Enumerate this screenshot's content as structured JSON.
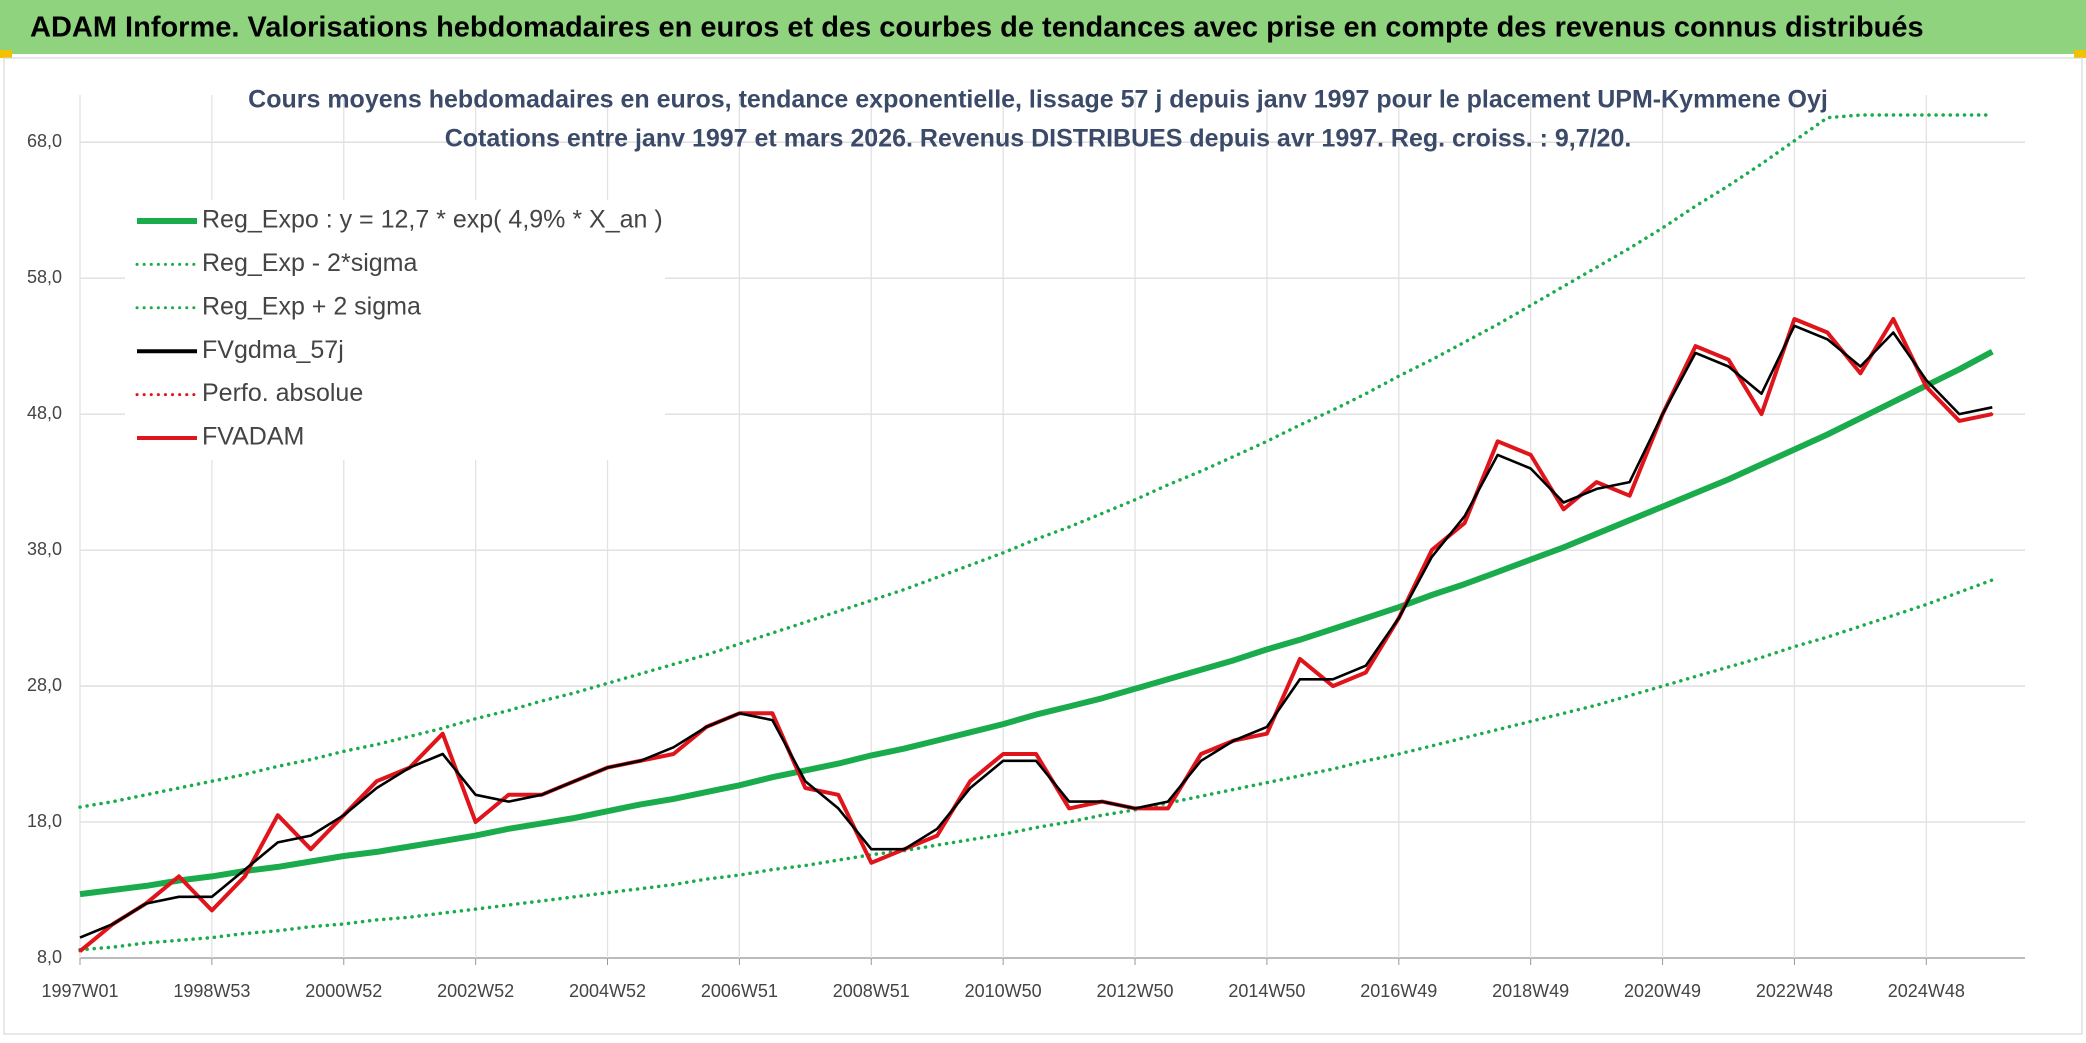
{
  "header": {
    "title": "ADAM Informe. Valorisations hebdomadaires en euros et des courbes de tendances avec prise en compte des revenus connus distribués"
  },
  "chart_data": {
    "type": "line",
    "title": "Cours moyens hebdomadaires en euros, tendance exponentielle, lissage 57 j depuis janv 1997 pour le placement UPM-Kymmene Oyj",
    "subtitle": "Cotations entre janv 1997 et mars 2026. Revenus DISTRIBUES depuis avr 1997. Reg. croiss. : 9,7/20.",
    "categories": [
      "1997W01",
      null,
      null,
      null,
      "1998W53",
      null,
      null,
      null,
      "2000W52",
      null,
      null,
      null,
      "2002W52",
      null,
      null,
      null,
      "2004W52",
      null,
      null,
      null,
      "2006W51",
      null,
      null,
      null,
      "2008W51",
      null,
      null,
      null,
      "2010W50",
      null,
      null,
      null,
      "2012W50",
      null,
      null,
      null,
      "2014W50",
      null,
      null,
      null,
      "2016W49",
      null,
      null,
      null,
      "2018W49",
      null,
      null,
      null,
      "2020W49",
      null,
      null,
      null,
      "2022W48",
      null,
      null,
      null,
      "2024W48",
      null,
      null
    ],
    "ylim": [
      8,
      70
    ],
    "yticks": [
      {
        "value": 8,
        "label": "8,0"
      },
      {
        "value": 18,
        "label": "18,0"
      },
      {
        "value": 28,
        "label": "28,0"
      },
      {
        "value": 38,
        "label": "38,0"
      },
      {
        "value": 48,
        "label": "48,0"
      },
      {
        "value": 58,
        "label": "58,0"
      },
      {
        "value": 68,
        "label": "68,0"
      }
    ],
    "grid": true,
    "legend": "upper left",
    "series": [
      {
        "name": "Reg_Expo : y = 12,7 * exp( 4,9% *  X_an )",
        "color": "#1aab4c",
        "style": "solid",
        "values": [
          12.7,
          13.0,
          13.3,
          13.7,
          14.0,
          14.4,
          14.7,
          15.1,
          15.5,
          15.8,
          16.2,
          16.6,
          17.0,
          17.5,
          17.9,
          18.3,
          18.8,
          19.3,
          19.7,
          20.2,
          20.7,
          21.3,
          21.8,
          22.3,
          22.9,
          23.4,
          24.0,
          24.6,
          25.2,
          25.9,
          26.5,
          27.1,
          27.8,
          28.5,
          29.2,
          29.9,
          30.7,
          31.4,
          32.2,
          33.0,
          33.8,
          34.7,
          35.5,
          36.4,
          37.3,
          38.2,
          39.2,
          40.2,
          41.2,
          42.2,
          43.2,
          44.3,
          45.4,
          46.5,
          47.7,
          48.9,
          50.1,
          51.3,
          52.6
        ]
      },
      {
        "name": "Reg_Exp - 2*sigma",
        "color": "#1aab4c",
        "style": "dotted",
        "values": [
          8.6,
          8.8,
          9.1,
          9.3,
          9.5,
          9.8,
          10.0,
          10.3,
          10.5,
          10.8,
          11.0,
          11.3,
          11.6,
          11.9,
          12.2,
          12.5,
          12.8,
          13.1,
          13.4,
          13.8,
          14.1,
          14.5,
          14.8,
          15.2,
          15.6,
          15.9,
          16.3,
          16.7,
          17.1,
          17.6,
          18.0,
          18.5,
          18.9,
          19.4,
          19.9,
          20.4,
          20.9,
          21.4,
          21.9,
          22.5,
          23.0,
          23.6,
          24.2,
          24.8,
          25.4,
          26.0,
          26.6,
          27.3,
          28.0,
          28.7,
          29.4,
          30.1,
          30.9,
          31.6,
          32.4,
          33.2,
          34.0,
          34.9,
          35.8
        ]
      },
      {
        "name": "Reg_Exp + 2 sigma",
        "color": "#1aab4c",
        "style": "dotted",
        "values": [
          19.1,
          19.5,
          20.0,
          20.5,
          21.0,
          21.5,
          22.1,
          22.6,
          23.2,
          23.7,
          24.3,
          24.9,
          25.6,
          26.2,
          26.9,
          27.5,
          28.2,
          28.9,
          29.6,
          30.3,
          31.1,
          31.9,
          32.7,
          33.5,
          34.3,
          35.1,
          36.0,
          36.9,
          37.8,
          38.8,
          39.7,
          40.7,
          41.7,
          42.8,
          43.8,
          44.9,
          46.0,
          47.2,
          48.3,
          49.5,
          50.8,
          52.0,
          53.3,
          54.6,
          56.0,
          57.4,
          58.8,
          60.2,
          61.7,
          63.3,
          64.8,
          66.4,
          68.1,
          69.8,
          70,
          70,
          70,
          70,
          70
        ]
      },
      {
        "name": "FVgdma_57j",
        "color": "#000000",
        "style": "solid",
        "values": [
          9.5,
          10.5,
          12,
          12.5,
          12.5,
          14.5,
          16.5,
          17,
          18.5,
          20.5,
          22,
          23,
          20,
          19.5,
          20,
          21,
          22,
          22.5,
          23.5,
          25,
          26,
          25.5,
          21,
          19,
          16,
          16,
          17.5,
          20.5,
          22.5,
          22.5,
          19.5,
          19.5,
          19,
          19.5,
          22.5,
          24,
          25,
          28.5,
          28.5,
          29.5,
          33,
          37.5,
          40.5,
          45,
          44,
          41.5,
          42.5,
          43,
          48,
          52.5,
          51.5,
          49.5,
          54.5,
          53.5,
          51.5,
          54,
          50.5,
          48,
          48.5
        ]
      },
      {
        "name": "Perfo. absolue",
        "color": "#e0141b",
        "style": "dotted",
        "values": [
          8.5,
          10.5,
          12,
          14,
          11.5,
          14,
          18.5,
          16,
          18.5,
          21,
          22,
          24.5,
          18,
          20,
          20,
          21,
          22,
          22.5,
          23,
          25,
          26,
          26,
          20.5,
          20,
          15,
          16,
          17,
          21,
          23,
          23,
          19,
          19.5,
          19,
          19,
          23,
          24,
          24.5,
          30,
          28,
          29,
          33,
          38,
          40,
          46,
          45,
          41,
          43,
          42,
          48,
          53,
          52,
          48,
          55,
          54,
          51,
          55,
          50,
          47.5,
          48
        ]
      },
      {
        "name": "FVADAM",
        "color": "#e0141b",
        "style": "solid",
        "values": [
          8.5,
          10.5,
          12,
          14,
          11.5,
          14,
          18.5,
          16,
          18.5,
          21,
          22,
          24.5,
          18,
          20,
          20,
          21,
          22,
          22.5,
          23,
          25,
          26,
          26,
          20.5,
          20,
          15,
          16,
          17,
          21,
          23,
          23,
          19,
          19.5,
          19,
          19,
          23,
          24,
          24.5,
          30,
          28,
          29,
          33,
          38,
          40,
          46,
          45,
          41,
          43,
          42,
          48,
          53,
          52,
          48,
          55,
          54,
          51,
          55,
          50,
          47.5,
          48
        ]
      }
    ]
  }
}
